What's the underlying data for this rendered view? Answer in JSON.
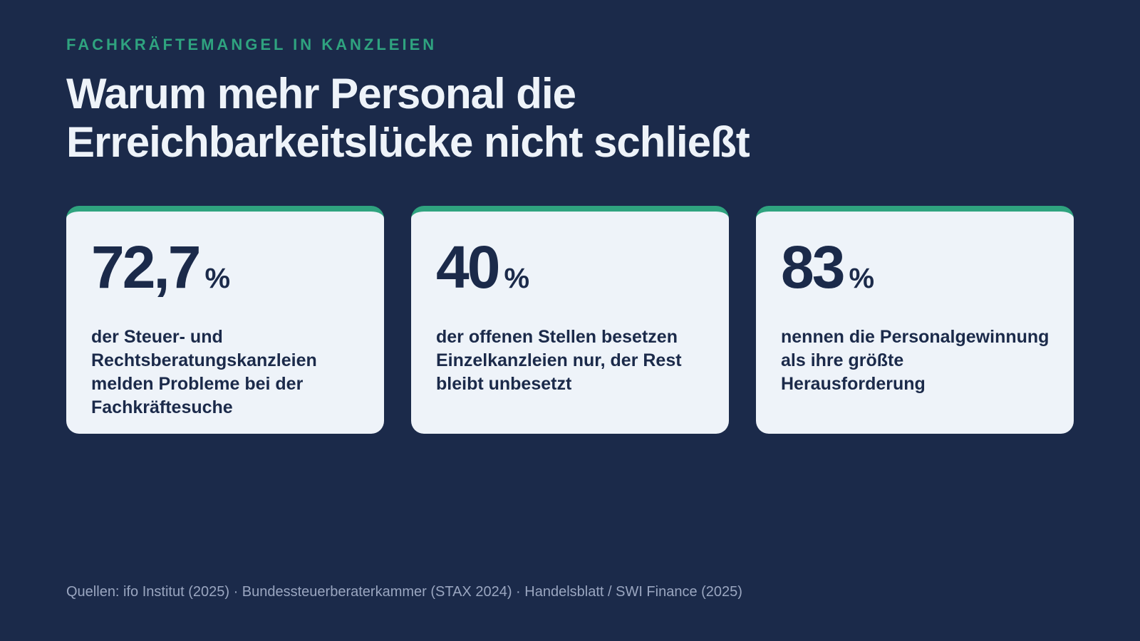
{
  "header": {
    "eyebrow": "FACHKRÄFTEMANGEL IN KANZLEIEN",
    "title": [
      "Warum mehr Personal die",
      "Erreichbarkeitslücke nicht schließt"
    ]
  },
  "cards": [
    {
      "value": "72,7",
      "unit": "%",
      "text": "der Steuer- und Rechtsberatungskanzleien melden Probleme bei der Fachkräftesuche"
    },
    {
      "value": "40",
      "unit": "%",
      "text": "der offenen Stellen besetzen Einzelkanzleien nur, der Rest bleibt unbesetzt"
    },
    {
      "value": "83",
      "unit": "%",
      "text": "nennen die Personalgewinnung als ihre größte Herausforderung"
    }
  ],
  "footer": {
    "sources": "Quellen: ifo Institut (2025) · Bundessteuerberaterkammer (STAX 2024) · Handelsblatt / SWI Finance (2025)"
  }
}
